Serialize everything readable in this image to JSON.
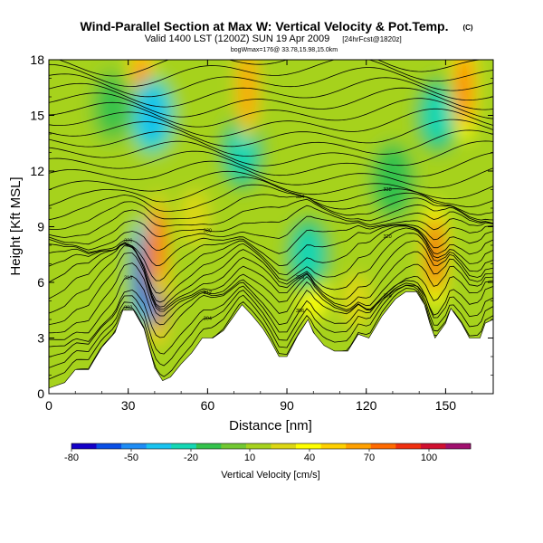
{
  "title": "Wind-Parallel Section at Max W: Vertical Velocity & Pot.Temp.",
  "copyright": "(C)",
  "subtitle_main": "Valid 1400 LST (1200Z) SUN 19 Apr 2009",
  "subtitle_extra": "[24hrFcst@1820z]",
  "subtitle_small": "bogWmax=176@ 33.78,15.98,15.0km",
  "chart_data": {
    "type": "heatmap",
    "xlabel": "Distance [nm]",
    "ylabel": "Height [Kft MSL]",
    "xlim": [
      0,
      168
    ],
    "ylim": [
      0,
      18
    ],
    "xticks": [
      0,
      30,
      60,
      90,
      120,
      150
    ],
    "yticks": [
      0,
      3,
      6,
      9,
      12,
      15,
      18
    ],
    "colorbar": {
      "label": "Vertical Velocity [cm/s]",
      "tick_labels": [
        "-80",
        "-50",
        "-20",
        "10",
        "40",
        "70",
        "100"
      ],
      "colors": [
        "#1400c8",
        "#0a4fe6",
        "#1e8cf5",
        "#19c3f0",
        "#14d7b4",
        "#34c24c",
        "#72c832",
        "#a6d21e",
        "#dcd714",
        "#ffff00",
        "#ffd000",
        "#ffa000",
        "#ff6a00",
        "#f03010",
        "#d01030",
        "#a0106e"
      ]
    },
    "terrain_kft": [
      [
        0,
        0.3
      ],
      [
        6,
        0.6
      ],
      [
        10,
        1.3
      ],
      [
        15,
        1.3
      ],
      [
        20,
        2.5
      ],
      [
        25,
        3.3
      ],
      [
        28,
        4.5
      ],
      [
        32,
        4.5
      ],
      [
        36,
        3.5
      ],
      [
        40,
        1.4
      ],
      [
        43,
        0.7
      ],
      [
        46,
        0.9
      ],
      [
        50,
        1.6
      ],
      [
        54,
        2.2
      ],
      [
        58,
        3.0
      ],
      [
        62,
        3.0
      ],
      [
        66,
        3.4
      ],
      [
        70,
        4.2
      ],
      [
        73,
        4.8
      ],
      [
        77,
        4.2
      ],
      [
        81,
        3.5
      ],
      [
        84,
        2.8
      ],
      [
        87,
        2.0
      ],
      [
        90,
        2.0
      ],
      [
        94,
        3.1
      ],
      [
        98,
        4.0
      ],
      [
        100,
        3.3
      ],
      [
        104,
        2.6
      ],
      [
        108,
        2.3
      ],
      [
        113,
        2.3
      ],
      [
        117,
        3.2
      ],
      [
        121,
        3.0
      ],
      [
        126,
        4.2
      ],
      [
        131,
        5.1
      ],
      [
        135,
        5.5
      ],
      [
        139,
        5.5
      ],
      [
        142,
        4.8
      ],
      [
        144,
        3.8
      ],
      [
        146,
        3.0
      ],
      [
        150,
        3.8
      ],
      [
        152,
        4.6
      ],
      [
        156,
        3.8
      ],
      [
        159,
        3.0
      ],
      [
        163,
        3.0
      ],
      [
        165,
        3.8
      ],
      [
        168,
        4.0
      ]
    ],
    "vertical_velocity_features": [
      {
        "x": 41,
        "z": 5.5,
        "w_cm_s": 110
      },
      {
        "x": 36,
        "z": 6.5,
        "w_cm_s": -70
      },
      {
        "x": 35,
        "z": 16.5,
        "w_cm_s": 80
      },
      {
        "x": 39,
        "z": 15.0,
        "w_cm_s": -40
      },
      {
        "x": 41,
        "z": 8.0,
        "w_cm_s": 70
      },
      {
        "x": 73,
        "z": 13.0,
        "w_cm_s": -30
      },
      {
        "x": 75,
        "z": 16.5,
        "w_cm_s": 60
      },
      {
        "x": 100,
        "z": 5.5,
        "w_cm_s": 40
      },
      {
        "x": 98,
        "z": 7.5,
        "w_cm_s": -20
      },
      {
        "x": 146,
        "z": 7.5,
        "w_cm_s": 90
      },
      {
        "x": 147,
        "z": 15.0,
        "w_cm_s": -30
      },
      {
        "x": 157,
        "z": 16.5,
        "w_cm_s": 80
      },
      {
        "x": 24,
        "z": 15.5,
        "w_cm_s": -10
      },
      {
        "x": 116,
        "z": 5.0,
        "w_cm_s": 30
      },
      {
        "x": 55,
        "z": 9.5,
        "w_cm_s": 25
      },
      {
        "x": 130,
        "z": 11.5,
        "w_cm_s": -15
      }
    ],
    "potential_temperature_contours": {
      "interval_K": 2,
      "min_K": 300,
      "max_K": 364,
      "labels": [
        "302",
        "304",
        "306",
        "308",
        "310",
        "312",
        "316",
        "320",
        "326",
        "330",
        "334",
        "338"
      ]
    }
  }
}
